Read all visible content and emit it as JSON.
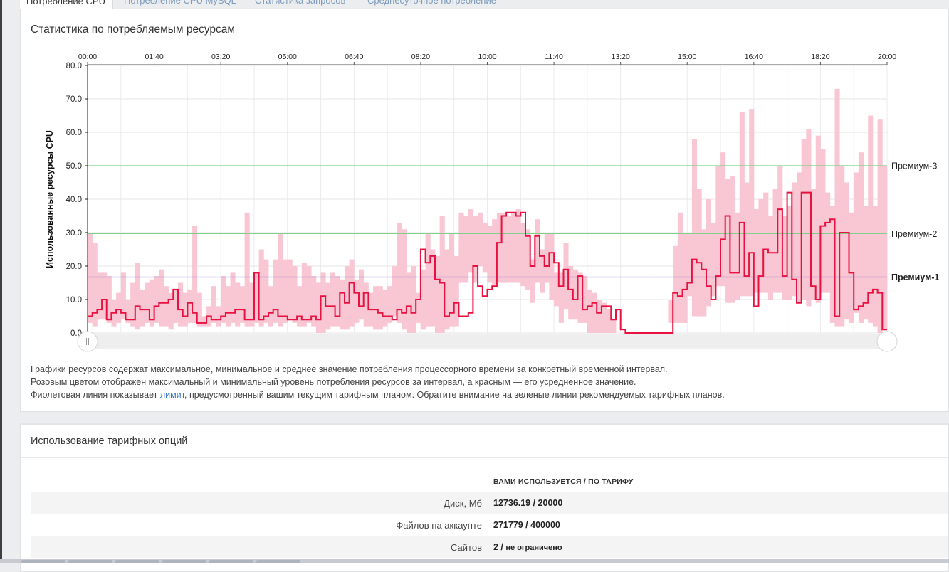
{
  "tabs": [
    {
      "label": "Потребление CPU",
      "active": true
    },
    {
      "label": "Потребление CPU MySQL",
      "active": false
    },
    {
      "label": "Статистика запросов",
      "active": false
    },
    {
      "label": "Среднесуточное потребление",
      "active": false
    }
  ],
  "cpu_panel": {
    "title": "Статистика по потребляемым ресурсам",
    "notes": {
      "line1": "Графики ресурсов содержат максимальное, минимальное и среднее значение потребления процессорного времени за конкретный временной интервал.",
      "line2": "Розовым цветом отображен максимальный и минимальный уровень потребления ресурсов за интервал, а красным — его усредненное значение.",
      "line3_before": "Фиолетовая линия показывает ",
      "line3_link": "лимит",
      "line3_after": ", предусмотренный вашим текущим тарифным планом. Обратите внимание на зеленые линии рекомендуемых тарифных планов."
    }
  },
  "chart_data": {
    "type": "area",
    "ylabel": "Использованные ресурсы CPU",
    "ylim": [
      0,
      80
    ],
    "yticks": [
      "0.0",
      "10.0",
      "20.0",
      "30.0",
      "40.0",
      "50.0",
      "60.0",
      "70.0",
      "80.0"
    ],
    "xticks": [
      "00:00",
      "01:40",
      "03:20",
      "05:00",
      "06:40",
      "08:20",
      "10:00",
      "11:40",
      "13:20",
      "15:00",
      "16:40",
      "18:20",
      "20:00"
    ],
    "x_range_minutes": [
      0,
      1220
    ],
    "grid": true,
    "colors": {
      "range": "#f9c6d3",
      "average": "#e8113f",
      "limit": "#8a7cc4",
      "recommended": "#7fd189"
    },
    "reference_lines": [
      {
        "name": "Премиум-3",
        "value": 50,
        "kind": "recommended",
        "bold": false
      },
      {
        "name": "Премиум-2",
        "value": 29.7,
        "kind": "recommended",
        "bold": false
      },
      {
        "name": "Премиум-1",
        "value": 16.7,
        "kind": "limit",
        "bold": true
      }
    ],
    "series": [
      {
        "name": "max",
        "values": [
          30,
          27,
          18,
          18,
          17,
          10,
          12,
          18,
          10,
          15,
          21,
          13,
          15,
          16,
          17,
          19,
          14,
          12,
          13,
          15,
          12,
          13,
          32,
          12,
          5,
          8,
          14,
          8,
          17,
          14,
          18,
          15,
          14,
          36,
          15,
          18,
          25,
          22,
          14,
          22,
          30,
          22,
          22,
          20,
          14,
          21,
          20,
          17,
          15,
          18,
          15,
          18,
          17,
          16,
          20,
          22,
          16,
          19,
          15,
          12,
          14,
          14,
          13,
          14,
          20,
          33,
          31,
          18,
          20,
          12,
          19,
          30,
          25,
          23,
          35,
          25,
          30,
          23,
          36,
          35,
          37,
          35,
          36,
          33,
          32,
          34,
          36,
          36,
          35,
          36,
          37,
          33,
          31,
          22,
          34,
          25,
          30,
          30,
          18,
          18,
          27,
          20,
          19,
          18,
          17,
          13,
          12,
          10,
          9,
          7,
          4,
          0,
          0,
          0,
          0,
          0,
          0,
          0,
          0,
          0,
          0,
          0,
          10,
          26,
          36,
          30,
          30,
          58,
          43,
          31,
          40,
          33,
          50,
          54,
          46,
          47,
          36,
          66,
          45,
          67,
          37,
          40,
          42,
          35,
          43,
          50,
          35,
          38,
          45,
          48,
          58,
          61,
          43,
          59,
          55,
          42,
          38,
          73,
          50,
          45,
          36,
          48,
          54,
          38,
          65,
          38,
          64,
          50,
          59,
          51,
          44,
          41,
          33,
          16
        ]
      },
      {
        "name": "min",
        "values": [
          3,
          2,
          4,
          4,
          3,
          2,
          3,
          4,
          3,
          2,
          1,
          2,
          3,
          2,
          3,
          2,
          2,
          1,
          3,
          2,
          2,
          3,
          3,
          2,
          2,
          2,
          3,
          2,
          3,
          2,
          3,
          2,
          3,
          2,
          2,
          3,
          2,
          3,
          2,
          3,
          2,
          3,
          4,
          3,
          2,
          2,
          3,
          2,
          0,
          0,
          1,
          2,
          2,
          1,
          1,
          2,
          3,
          4,
          2,
          2,
          1,
          1,
          2,
          3,
          5,
          3,
          1,
          0,
          0,
          3,
          1,
          2,
          2,
          0,
          0,
          1,
          2,
          2,
          15,
          15,
          18,
          15,
          20,
          18,
          15,
          14,
          15,
          15,
          15,
          15,
          15,
          14,
          13,
          9,
          15,
          12,
          15,
          10,
          8,
          3,
          7,
          4,
          4,
          3,
          3,
          0,
          0,
          0,
          0,
          0,
          0,
          0,
          0,
          0,
          0,
          0,
          0,
          0,
          0,
          0,
          0,
          0,
          3,
          3,
          3,
          3,
          11,
          5,
          5,
          5,
          8,
          11,
          14,
          14,
          9,
          9,
          10,
          11,
          11,
          11,
          12,
          12,
          12,
          10,
          12,
          12,
          10,
          10,
          11,
          9,
          10,
          8,
          10,
          9,
          12,
          12,
          3,
          2,
          2,
          4,
          3,
          6,
          3,
          4,
          3,
          2,
          0,
          1,
          1,
          5,
          6,
          6,
          3,
          3
        ]
      },
      {
        "name": "average",
        "values": [
          5,
          6,
          7,
          10,
          4,
          6,
          7,
          6,
          4,
          4,
          8,
          7,
          7,
          4,
          8,
          9,
          9,
          10,
          13,
          7,
          5,
          9,
          6,
          3,
          3,
          5,
          4,
          4,
          5,
          6,
          6,
          7,
          7,
          4,
          4,
          18,
          4,
          5,
          6,
          7,
          5,
          5,
          4,
          4,
          5,
          4,
          4,
          5,
          4,
          11,
          8,
          8,
          5,
          12,
          9,
          15,
          12,
          8,
          12,
          7,
          7,
          6,
          5,
          5,
          4,
          7,
          6,
          8,
          6,
          10,
          25,
          21,
          23,
          16,
          15,
          5,
          6,
          9,
          5,
          5,
          6,
          20,
          14,
          11,
          13,
          14,
          27,
          35,
          36,
          36,
          35,
          36,
          29,
          20,
          29,
          23,
          20,
          24,
          21,
          14,
          19,
          13,
          10,
          17,
          7,
          8,
          9,
          6,
          8,
          8,
          4,
          7,
          1,
          0,
          0,
          0,
          0,
          0,
          0,
          0,
          0,
          0,
          0,
          12,
          11,
          13,
          15,
          22,
          21,
          19,
          14,
          10,
          17,
          28,
          35,
          18,
          18,
          33,
          17,
          24,
          8,
          17,
          25,
          24,
          24,
          37,
          17,
          42,
          16,
          9,
          42,
          42,
          14,
          10,
          32,
          33,
          34,
          5,
          30,
          30,
          18,
          7,
          8,
          9,
          12,
          13,
          12,
          1
        ]
      }
    ]
  },
  "opts_panel": {
    "title": "Использование тарифных опций",
    "header": "ВАМИ ИСПОЛЬЗУЕТСЯ / ПО ТАРИФУ",
    "rows": [
      {
        "label": "Диск, Мб",
        "value": "12736.19 / 20000",
        "extra": ""
      },
      {
        "label": "Файлов на аккаунте",
        "value": "271779 / 400000",
        "extra": ""
      },
      {
        "label": "Сайтов",
        "value": "2 / ",
        "extra": "не ограничено"
      }
    ]
  }
}
